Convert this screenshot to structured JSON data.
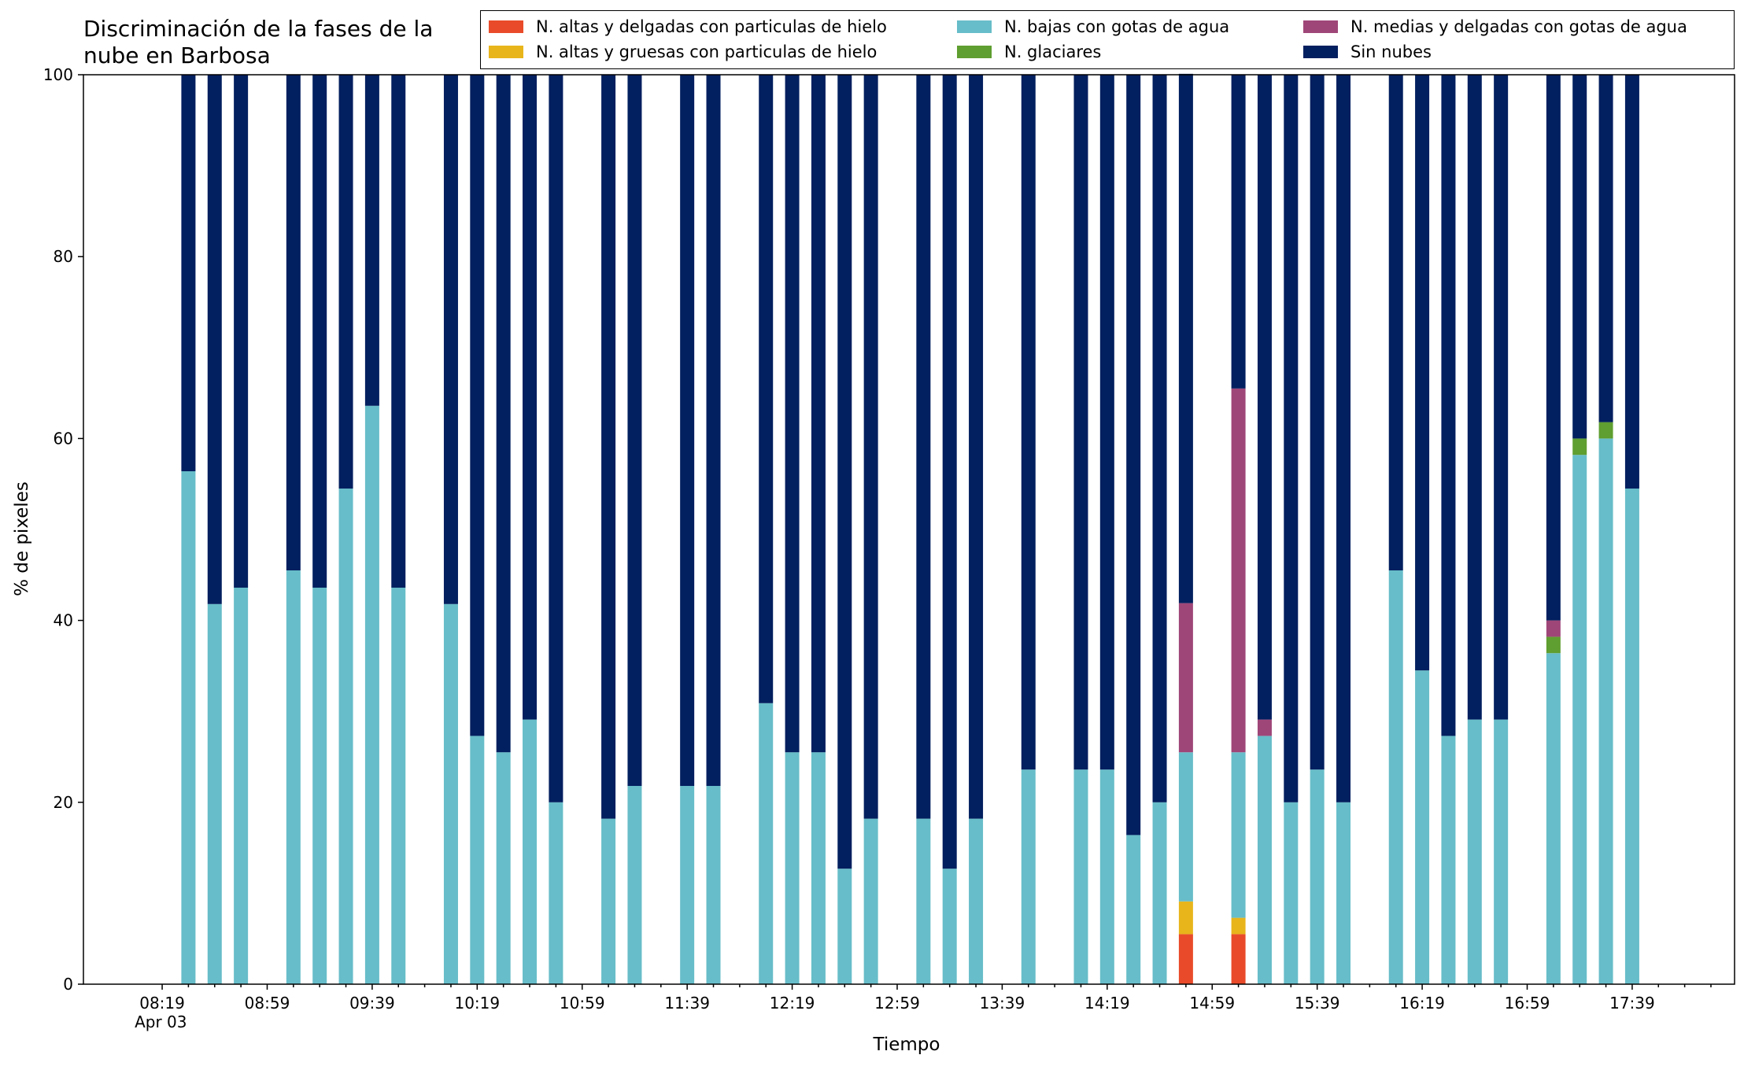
{
  "chart_data": {
    "type": "bar",
    "stacked": true,
    "title": "Discriminación de la fases de la\nnube en Barbosa",
    "xlabel": "Tiempo",
    "ylabel": "% de pixeles",
    "ylim": [
      0,
      100
    ],
    "yticks": [
      "0",
      "20",
      "40",
      "60",
      "80",
      "100"
    ],
    "xticks": [
      "08:19\nApr 03",
      "08:59",
      "09:39",
      "10:19",
      "10:59",
      "11:39",
      "12:19",
      "12:59",
      "13:39",
      "14:19",
      "14:59",
      "15:39",
      "16:19",
      "16:59",
      "17:39"
    ],
    "xlim_minutes": [
      469,
      1098
    ],
    "legend_position": "top-right",
    "grid": false,
    "series": [
      {
        "name": "N. altas y delgadas con particulas de hielo",
        "color": "#e94b2a"
      },
      {
        "name": "N. altas y gruesas con particulas de hielo",
        "color": "#e8b51b"
      },
      {
        "name": "N. bajas con gotas de agua",
        "color": "#67bdc9"
      },
      {
        "name": "N. glaciares",
        "color": "#5f9e30"
      },
      {
        "name": "N. medias y delgadas con gotas de agua",
        "color": "#9f4678"
      },
      {
        "name": "Sin nubes",
        "color": "#021f5f"
      }
    ],
    "bars": [
      {
        "time": "08:29",
        "values": [
          0,
          0,
          56.4,
          0,
          0,
          43.6
        ]
      },
      {
        "time": "08:39",
        "values": [
          0,
          0,
          41.8,
          0,
          0,
          58.2
        ]
      },
      {
        "time": "08:49",
        "values": [
          0,
          0,
          43.6,
          0,
          0,
          56.4
        ]
      },
      {
        "time": "09:09",
        "values": [
          0,
          0,
          45.5,
          0,
          0,
          54.5
        ]
      },
      {
        "time": "09:19",
        "values": [
          0,
          0,
          43.6,
          0,
          0,
          56.4
        ]
      },
      {
        "time": "09:29",
        "values": [
          0,
          0,
          54.5,
          0,
          0,
          45.5
        ]
      },
      {
        "time": "09:39",
        "values": [
          0,
          0,
          63.6,
          0,
          0,
          36.4
        ]
      },
      {
        "time": "09:49",
        "values": [
          0,
          0,
          43.6,
          0,
          0,
          56.4
        ]
      },
      {
        "time": "10:09",
        "values": [
          0,
          0,
          41.8,
          0,
          0,
          58.2
        ]
      },
      {
        "time": "10:19",
        "values": [
          0,
          0,
          27.3,
          0,
          0,
          72.7
        ]
      },
      {
        "time": "10:29",
        "values": [
          0,
          0,
          25.5,
          0,
          0,
          74.5
        ]
      },
      {
        "time": "10:39",
        "values": [
          0,
          0,
          29.1,
          0,
          0,
          70.9
        ]
      },
      {
        "time": "10:49",
        "values": [
          0,
          0,
          20.0,
          0,
          0,
          80.0
        ]
      },
      {
        "time": "11:09",
        "values": [
          0,
          0,
          18.2,
          0,
          0,
          81.8
        ]
      },
      {
        "time": "11:19",
        "values": [
          0,
          0,
          21.8,
          0,
          0,
          78.2
        ]
      },
      {
        "time": "11:39",
        "values": [
          0,
          0,
          21.8,
          0,
          0,
          78.2
        ]
      },
      {
        "time": "11:49",
        "values": [
          0,
          0,
          21.8,
          0,
          0,
          78.2
        ]
      },
      {
        "time": "12:09",
        "values": [
          0,
          0,
          30.9,
          0,
          0,
          69.1
        ]
      },
      {
        "time": "12:19",
        "values": [
          0,
          0,
          25.5,
          0,
          0,
          74.5
        ]
      },
      {
        "time": "12:29",
        "values": [
          0,
          0,
          25.5,
          0,
          0,
          74.5
        ]
      },
      {
        "time": "12:39",
        "values": [
          0,
          0,
          12.7,
          0,
          0,
          87.3
        ]
      },
      {
        "time": "12:49",
        "values": [
          0,
          0,
          18.2,
          0,
          0,
          81.8
        ]
      },
      {
        "time": "13:09",
        "values": [
          0,
          0,
          18.2,
          0,
          0,
          81.8
        ]
      },
      {
        "time": "13:19",
        "values": [
          0,
          0,
          12.7,
          0,
          0,
          87.3
        ]
      },
      {
        "time": "13:29",
        "values": [
          0,
          0,
          18.2,
          0,
          0,
          81.8
        ]
      },
      {
        "time": "13:49",
        "values": [
          0,
          0,
          23.6,
          0,
          0,
          76.4
        ]
      },
      {
        "time": "14:09",
        "values": [
          0,
          0,
          23.6,
          0,
          0,
          76.4
        ]
      },
      {
        "time": "14:19",
        "values": [
          0,
          0,
          23.6,
          0,
          0,
          76.4
        ]
      },
      {
        "time": "14:29",
        "values": [
          0,
          0,
          16.4,
          0,
          0,
          83.6
        ]
      },
      {
        "time": "14:39",
        "values": [
          0,
          0,
          20.0,
          0,
          0,
          80.0
        ]
      },
      {
        "time": "14:49",
        "values": [
          5.5,
          3.6,
          16.4,
          0,
          16.4,
          58.2
        ]
      },
      {
        "time": "15:09",
        "values": [
          5.5,
          1.8,
          18.2,
          0,
          40.0,
          34.5
        ]
      },
      {
        "time": "15:19",
        "values": [
          0,
          0,
          27.3,
          0,
          1.8,
          70.9
        ]
      },
      {
        "time": "15:29",
        "values": [
          0,
          0,
          20.0,
          0,
          0,
          80.0
        ]
      },
      {
        "time": "15:39",
        "values": [
          0,
          0,
          23.6,
          0,
          0,
          76.4
        ]
      },
      {
        "time": "15:49",
        "values": [
          0,
          0,
          20.0,
          0,
          0,
          80.0
        ]
      },
      {
        "time": "16:09",
        "values": [
          0,
          0,
          45.5,
          0,
          0,
          54.5
        ]
      },
      {
        "time": "16:19",
        "values": [
          0,
          0,
          34.5,
          0,
          0,
          65.5
        ]
      },
      {
        "time": "16:29",
        "values": [
          0,
          0,
          27.3,
          0,
          0,
          72.7
        ]
      },
      {
        "time": "16:39",
        "values": [
          0,
          0,
          29.1,
          0,
          0,
          70.9
        ]
      },
      {
        "time": "16:49",
        "values": [
          0,
          0,
          29.1,
          0,
          0,
          70.9
        ]
      },
      {
        "time": "17:09",
        "values": [
          0,
          0,
          36.4,
          1.8,
          1.8,
          60.0
        ]
      },
      {
        "time": "17:19",
        "values": [
          0,
          0,
          58.2,
          1.8,
          0,
          40.0
        ]
      },
      {
        "time": "17:29",
        "values": [
          0,
          0,
          60.0,
          1.8,
          0,
          38.2
        ]
      },
      {
        "time": "17:39",
        "values": [
          0,
          0,
          54.5,
          0,
          0,
          45.5
        ]
      }
    ]
  }
}
